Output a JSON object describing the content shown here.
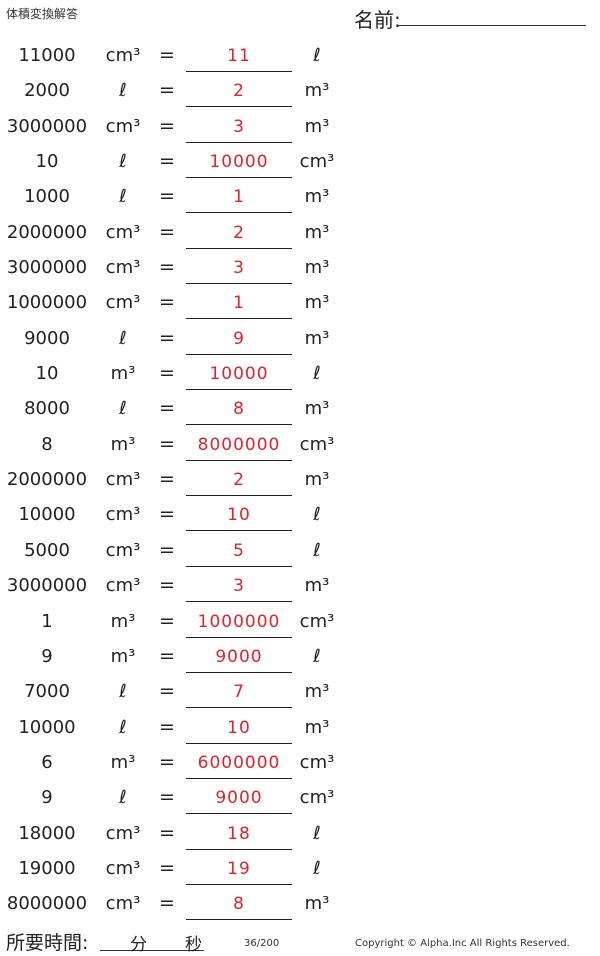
{
  "header": {
    "title": "体積変換解答",
    "name_label": "名前:"
  },
  "rows": [
    {
      "num": "11000",
      "from": "cm³",
      "eq": "=",
      "answer": "11",
      "to": "ℓ"
    },
    {
      "num": "2000",
      "from": "ℓ",
      "eq": "=",
      "answer": "2",
      "to": "m³"
    },
    {
      "num": "3000000",
      "from": "cm³",
      "eq": "=",
      "answer": "3",
      "to": "m³"
    },
    {
      "num": "10",
      "from": "ℓ",
      "eq": "=",
      "answer": "10000",
      "to": "cm³"
    },
    {
      "num": "1000",
      "from": "ℓ",
      "eq": "=",
      "answer": "1",
      "to": "m³"
    },
    {
      "num": "2000000",
      "from": "cm³",
      "eq": "=",
      "answer": "2",
      "to": "m³"
    },
    {
      "num": "3000000",
      "from": "cm³",
      "eq": "=",
      "answer": "3",
      "to": "m³"
    },
    {
      "num": "1000000",
      "from": "cm³",
      "eq": "=",
      "answer": "1",
      "to": "m³"
    },
    {
      "num": "9000",
      "from": "ℓ",
      "eq": "=",
      "answer": "9",
      "to": "m³"
    },
    {
      "num": "10",
      "from": "m³",
      "eq": "=",
      "answer": "10000",
      "to": "ℓ"
    },
    {
      "num": "8000",
      "from": "ℓ",
      "eq": "=",
      "answer": "8",
      "to": "m³"
    },
    {
      "num": "8",
      "from": "m³",
      "eq": "=",
      "answer": "8000000",
      "to": "cm³"
    },
    {
      "num": "2000000",
      "from": "cm³",
      "eq": "=",
      "answer": "2",
      "to": "m³"
    },
    {
      "num": "10000",
      "from": "cm³",
      "eq": "=",
      "answer": "10",
      "to": "ℓ"
    },
    {
      "num": "5000",
      "from": "cm³",
      "eq": "=",
      "answer": "5",
      "to": "ℓ"
    },
    {
      "num": "3000000",
      "from": "cm³",
      "eq": "=",
      "answer": "3",
      "to": "m³"
    },
    {
      "num": "1",
      "from": "m³",
      "eq": "=",
      "answer": "1000000",
      "to": "cm³"
    },
    {
      "num": "9",
      "from": "m³",
      "eq": "=",
      "answer": "9000",
      "to": "ℓ"
    },
    {
      "num": "7000",
      "from": "ℓ",
      "eq": "=",
      "answer": "7",
      "to": "m³"
    },
    {
      "num": "10000",
      "from": "ℓ",
      "eq": "=",
      "answer": "10",
      "to": "m³"
    },
    {
      "num": "6",
      "from": "m³",
      "eq": "=",
      "answer": "6000000",
      "to": "cm³"
    },
    {
      "num": "9",
      "from": "ℓ",
      "eq": "=",
      "answer": "9000",
      "to": "cm³"
    },
    {
      "num": "18000",
      "from": "cm³",
      "eq": "=",
      "answer": "18",
      "to": "ℓ"
    },
    {
      "num": "19000",
      "from": "cm³",
      "eq": "=",
      "answer": "19",
      "to": "ℓ"
    },
    {
      "num": "8000000",
      "from": "cm³",
      "eq": "=",
      "answer": "8",
      "to": "m³"
    }
  ],
  "footer": {
    "time_label": "所要時間:",
    "minutes_label": "分",
    "seconds_label": "秒",
    "page": "36/200",
    "copyright": "Copyright © Alpha.Inc All Rights Reserved."
  },
  "colors": {
    "answer": "#e8202a",
    "text": "#222222"
  }
}
